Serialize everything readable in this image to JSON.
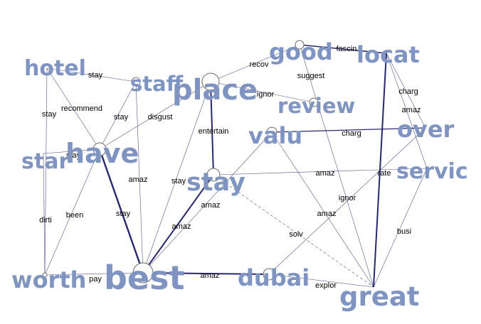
{
  "graph": {
    "colors": {
      "node_text": "#8094c2",
      "edge_line": "#1c1c66",
      "edge_label": "#000000",
      "node_fill": "#ffffff",
      "node_stroke": "#6a6a6a"
    },
    "nodes": [
      {
        "id": "hotel",
        "label": "hotel"
      },
      {
        "id": "staff",
        "label": "staff"
      },
      {
        "id": "place",
        "label": "place"
      },
      {
        "id": "good",
        "label": "good"
      },
      {
        "id": "locat",
        "label": "locat"
      },
      {
        "id": "review",
        "label": "review"
      },
      {
        "id": "have",
        "label": "have"
      },
      {
        "id": "star",
        "label": "star"
      },
      {
        "id": "valu",
        "label": "valu"
      },
      {
        "id": "over",
        "label": "over"
      },
      {
        "id": "stay",
        "label": "stay"
      },
      {
        "id": "servic",
        "label": "servic"
      },
      {
        "id": "worth",
        "label": "worth"
      },
      {
        "id": "best",
        "label": "best"
      },
      {
        "id": "dubai",
        "label": "dubai"
      },
      {
        "id": "great",
        "label": "great"
      }
    ],
    "edges": [
      {
        "from": "hotel",
        "to": "staff",
        "label": "stay"
      },
      {
        "from": "hotel",
        "to": "have",
        "label": "recommend"
      },
      {
        "from": "hotel",
        "to": "worth",
        "label": "stay"
      },
      {
        "from": "staff",
        "to": "have",
        "label": "stay"
      },
      {
        "from": "staff",
        "to": "best",
        "label": "amaz"
      },
      {
        "from": "have",
        "to": "place",
        "label": "disgust"
      },
      {
        "from": "star",
        "to": "have",
        "label": "stay"
      },
      {
        "from": "have",
        "to": "best",
        "label": "stay"
      },
      {
        "from": "have",
        "to": "worth",
        "label": "been"
      },
      {
        "from": "star",
        "to": "worth",
        "label": "dirti"
      },
      {
        "from": "worth",
        "to": "best",
        "label": "pay"
      },
      {
        "from": "place",
        "to": "good",
        "label": "recov"
      },
      {
        "from": "place",
        "to": "review",
        "label": "ignor"
      },
      {
        "from": "place",
        "to": "stay",
        "label": "entertain"
      },
      {
        "from": "place",
        "to": "best",
        "label": "stay"
      },
      {
        "from": "good",
        "to": "locat",
        "label": "fascin"
      },
      {
        "from": "good",
        "to": "great",
        "label": "suggest"
      },
      {
        "from": "locat",
        "to": "over",
        "label": "charg"
      },
      {
        "from": "locat",
        "to": "servic",
        "label": "amaz"
      },
      {
        "from": "locat",
        "to": "great",
        "label": "ignor"
      },
      {
        "from": "valu",
        "to": "over",
        "label": "charg"
      },
      {
        "from": "valu",
        "to": "best",
        "label": "amaz"
      },
      {
        "from": "valu",
        "to": "great",
        "label": "amaz"
      },
      {
        "from": "stay",
        "to": "servic",
        "label": "amaz"
      },
      {
        "from": "stay",
        "to": "best",
        "label": "amaz"
      },
      {
        "from": "stay",
        "to": "great",
        "label": "solv"
      },
      {
        "from": "over",
        "to": "dubai",
        "label": "rate"
      },
      {
        "from": "servic",
        "to": "great",
        "label": "busi"
      },
      {
        "from": "best",
        "to": "dubai",
        "label": "amaz"
      },
      {
        "from": "dubai",
        "to": "great",
        "label": "explor"
      }
    ]
  }
}
